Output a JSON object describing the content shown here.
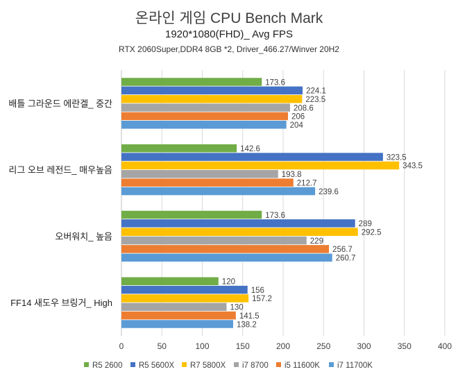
{
  "chart_data": {
    "type": "bar",
    "orientation": "horizontal",
    "title": "온라인 게임 CPU Bench Mark",
    "subtitle": "1920*1080(FHD)_ Avg FPS",
    "subtitle2": "RTX 2060Super,DDR4 8GB *2, Driver_466.27/Winver 20H2",
    "categories": [
      "배틀 그라운드 에란겔_ 중간",
      "리그 오브 레전드_ 매우높음",
      "오버워치_ 높음",
      "FF14 새도우 브링거_ High"
    ],
    "series": [
      {
        "name": "R5 2600",
        "color": "#70ad47",
        "values": [
          173.6,
          142.6,
          173.6,
          120
        ]
      },
      {
        "name": "R5 5600X",
        "color": "#4472c4",
        "values": [
          224.1,
          323.5,
          289,
          156
        ]
      },
      {
        "name": "R7 5800X",
        "color": "#ffc000",
        "values": [
          223.5,
          343.5,
          292.5,
          157.2
        ]
      },
      {
        "name": "i7 8700",
        "color": "#a5a5a5",
        "values": [
          208.6,
          193.8,
          229,
          130
        ]
      },
      {
        "name": "i5 11600K",
        "color": "#ed7d31",
        "values": [
          206,
          212.7,
          256.7,
          141.5
        ]
      },
      {
        "name": "i7 11700K",
        "color": "#5b9bd5",
        "values": [
          204,
          239.6,
          260.7,
          138.2
        ]
      }
    ],
    "xlim": [
      0,
      400
    ],
    "xticks": [
      0,
      50,
      100,
      150,
      200,
      250,
      300,
      350,
      400
    ],
    "grid": true,
    "legend_position": "bottom"
  }
}
